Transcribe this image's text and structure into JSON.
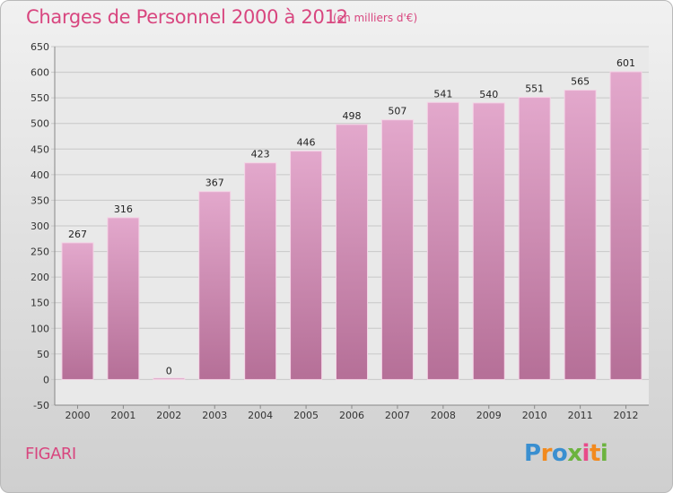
{
  "title": "Charges de Personnel 2000 à 2012",
  "subtitle": "(en milliers d'€)",
  "entity": "FIGARI",
  "logo": {
    "text": "Proxiti",
    "letters": [
      {
        "char": "P",
        "color": "#3a8fd0"
      },
      {
        "char": "r",
        "color": "#f28a1e"
      },
      {
        "char": "o",
        "color": "#3a8fd0"
      },
      {
        "char": "x",
        "color": "#6cb33f"
      },
      {
        "char": "i",
        "color": "#e84b8a"
      },
      {
        "char": "t",
        "color": "#f28a1e"
      },
      {
        "char": "i",
        "color": "#6cb33f"
      }
    ]
  },
  "colors": {
    "title": "#d8467f",
    "bar_top": "#e3a8cc",
    "bar_bottom": "#b56f97",
    "grid": "#c8c8c8",
    "plot_bg": "#e9e9e9"
  },
  "chart_data": {
    "type": "bar",
    "categories": [
      "2000",
      "2001",
      "2002",
      "2003",
      "2004",
      "2005",
      "2006",
      "2007",
      "2008",
      "2009",
      "2010",
      "2011",
      "2012"
    ],
    "values": [
      267,
      316,
      0,
      367,
      423,
      446,
      498,
      507,
      541,
      540,
      551,
      565,
      601
    ],
    "ylim": [
      -50,
      650
    ],
    "yticks": [
      -50,
      0,
      50,
      100,
      150,
      200,
      250,
      300,
      350,
      400,
      450,
      500,
      550,
      600,
      650
    ],
    "grid": true,
    "title": "Charges de Personnel 2000 à 2012",
    "xlabel": "",
    "ylabel": ""
  }
}
